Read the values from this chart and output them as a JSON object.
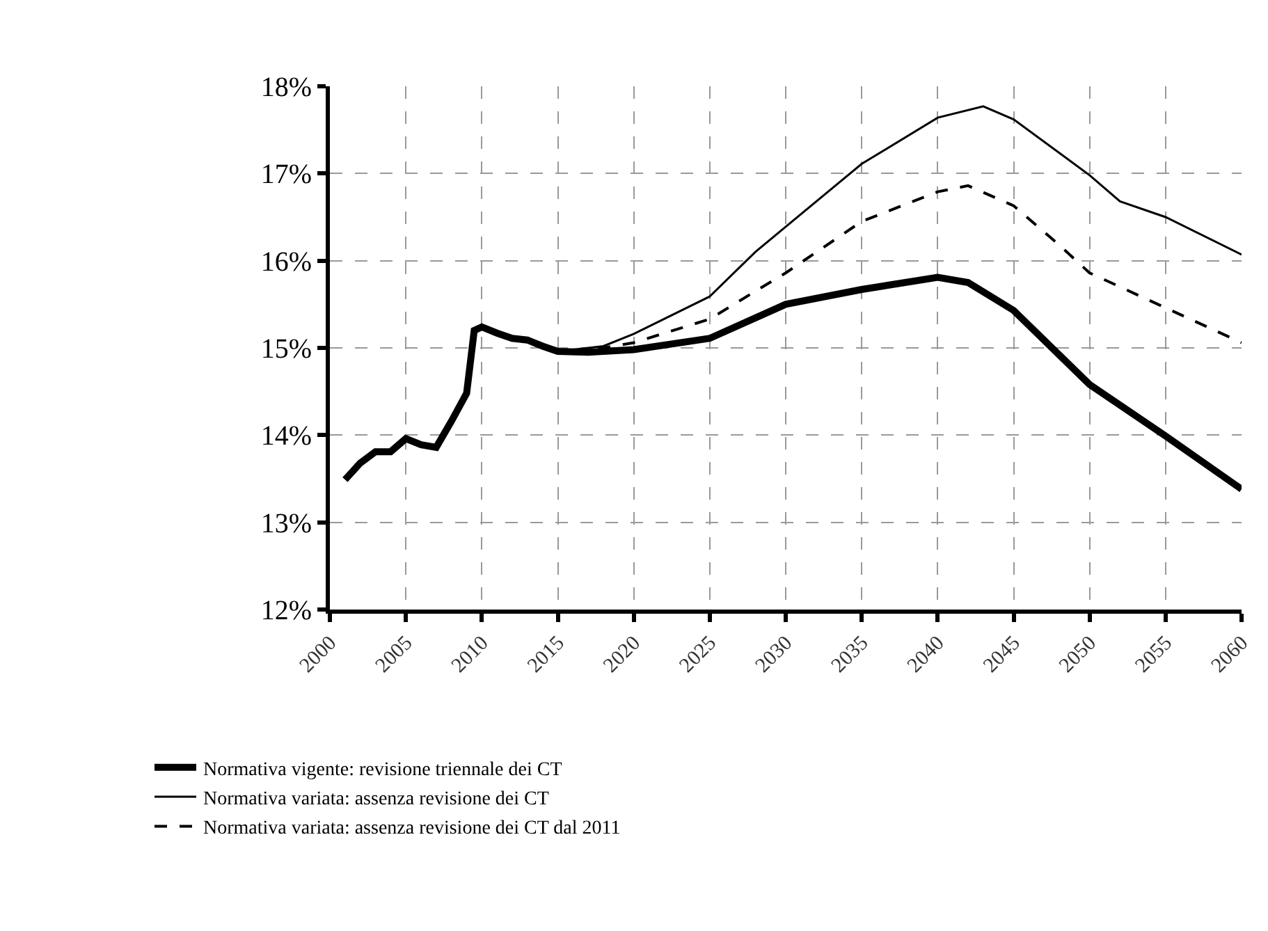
{
  "chart_data": {
    "type": "line",
    "xlim": [
      2000,
      2060
    ],
    "xticks": [
      2000,
      2005,
      2010,
      2015,
      2020,
      2025,
      2030,
      2035,
      2040,
      2045,
      2050,
      2055,
      2060
    ],
    "ylim": [
      12,
      18
    ],
    "yticks": [
      {
        "value": 12,
        "label": "12%"
      },
      {
        "value": 13,
        "label": "13%"
      },
      {
        "value": 14,
        "label": "14%"
      },
      {
        "value": 15,
        "label": "15%"
      },
      {
        "value": 16,
        "label": "16%"
      },
      {
        "value": 17,
        "label": "17%"
      },
      {
        "value": 18,
        "label": "18%"
      }
    ],
    "grid": true,
    "legend": "bottom left",
    "marker": "none",
    "series": [
      {
        "name": "Normativa vigente: revisione triennale dei CT",
        "color": "#000000",
        "line_style": "solid",
        "x": [
          2001,
          2002,
          2003,
          2004,
          2005,
          2006,
          2007,
          2008,
          2009,
          2009.5,
          2010,
          2011,
          2012,
          2013,
          2014,
          2015,
          2017,
          2020,
          2025,
          2030,
          2035,
          2040,
          2042,
          2045,
          2050,
          2055,
          2060
        ],
        "values": [
          13.49,
          13.68,
          13.81,
          13.81,
          13.96,
          13.89,
          13.86,
          14.16,
          14.48,
          15.2,
          15.24,
          15.17,
          15.11,
          15.09,
          15.02,
          14.96,
          14.95,
          14.98,
          15.11,
          15.5,
          15.67,
          15.81,
          15.75,
          15.43,
          14.58,
          13.99,
          13.38
        ]
      },
      {
        "name": "Normativa variata: assenza revisione dei CT",
        "color": "#000000",
        "line_style": "solid",
        "x": [
          2016,
          2018,
          2020,
          2025,
          2028,
          2030,
          2035,
          2040,
          2043,
          2045,
          2050,
          2052,
          2055,
          2060
        ],
        "values": [
          14.98,
          15.02,
          15.16,
          15.59,
          16.1,
          16.39,
          17.11,
          17.64,
          17.77,
          17.62,
          16.98,
          16.68,
          16.5,
          16.07
        ]
      },
      {
        "name": "Normativa variata: assenza revisione dei CT dal 2011",
        "color": "#000000",
        "line_style": "dashed",
        "x": [
          2016,
          2018,
          2020,
          2025,
          2028,
          2030,
          2035,
          2040,
          2042,
          2045,
          2048,
          2050,
          2055,
          2060
        ],
        "values": [
          14.97,
          15.0,
          15.06,
          15.33,
          15.65,
          15.86,
          16.45,
          16.79,
          16.86,
          16.63,
          16.18,
          15.86,
          15.46,
          15.06
        ]
      }
    ]
  }
}
